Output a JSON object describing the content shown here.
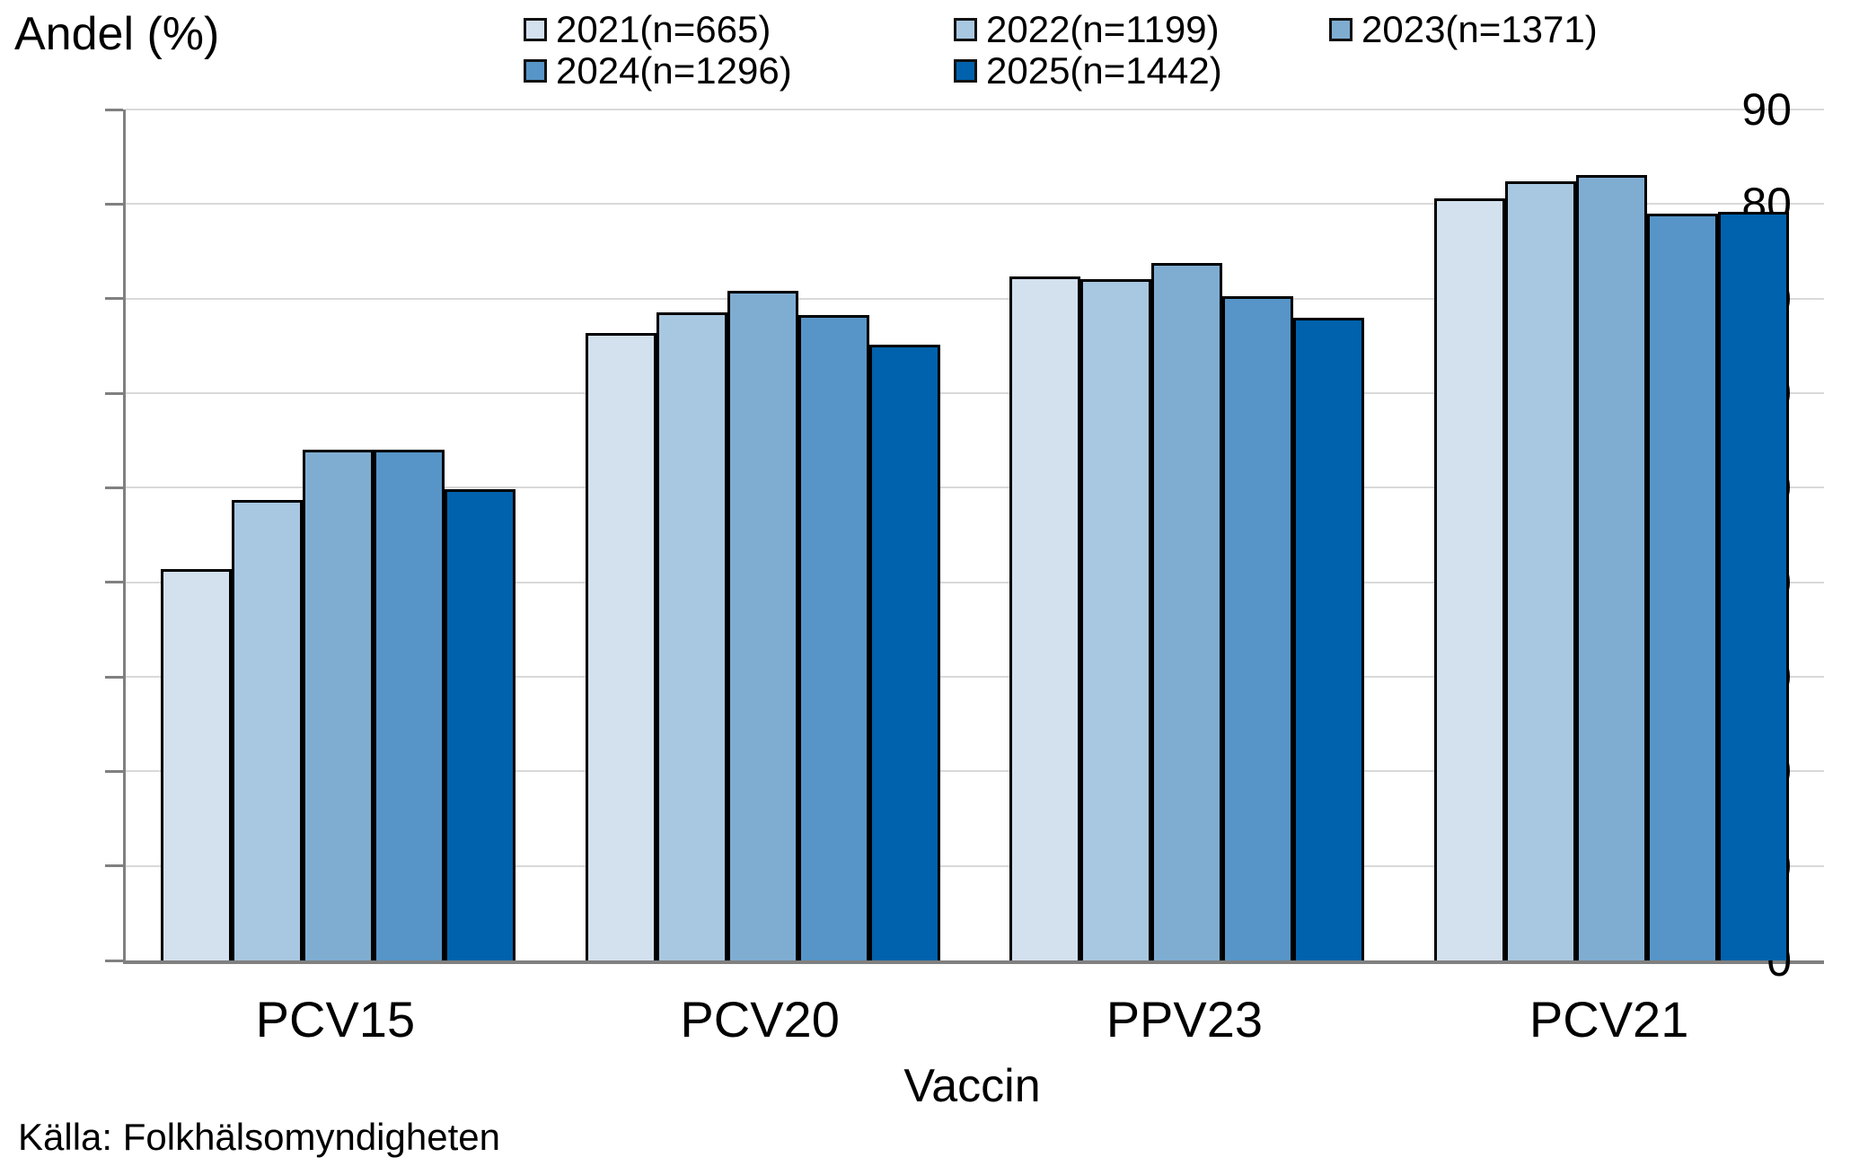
{
  "y_axis_title": "Andel (%)",
  "x_axis_title": "Vaccin",
  "source": "Källa: Folkhälsomyndigheten",
  "legend": {
    "position": "top",
    "items": [
      {
        "label": "2021(n=665)",
        "color": "#D3E0EE"
      },
      {
        "label": "2022(n=1199)",
        "color": "#A8C7E0"
      },
      {
        "label": "2023(n=1371)",
        "color": "#7FADD2"
      },
      {
        "label": "2024(n=1296)",
        "color": "#5795C8"
      },
      {
        "label": "2025(n=1442)",
        "color": "#0062AC"
      }
    ]
  },
  "colors": {
    "bar_border": "#000000",
    "gridline": "#D9D9D9",
    "axis": "#808080",
    "text": "#000000"
  },
  "chart_data": {
    "type": "bar",
    "title": "",
    "xlabel": "Vaccin",
    "ylabel": "Andel (%)",
    "ylim": [
      0,
      90
    ],
    "yticks": [
      0,
      10,
      20,
      30,
      40,
      50,
      60,
      70,
      80,
      90
    ],
    "grid": true,
    "legend_position": "top",
    "categories": [
      "PCV15",
      "PCV20",
      "PPV23",
      "PCV21"
    ],
    "series": [
      {
        "name": "2021(n=665)",
        "color": "#D3E0EE",
        "values": [
          41.4,
          66.4,
          72.3,
          80.6
        ]
      },
      {
        "name": "2022(n=1199)",
        "color": "#A8C7E0",
        "values": [
          48.7,
          68.5,
          72.1,
          82.4
        ]
      },
      {
        "name": "2023(n=1371)",
        "color": "#7FADD2",
        "values": [
          54.0,
          70.8,
          73.8,
          83.1
        ]
      },
      {
        "name": "2024(n=1296)",
        "color": "#5795C8",
        "values": [
          54.0,
          68.3,
          70.3,
          79.0
        ]
      },
      {
        "name": "2025(n=1442)",
        "color": "#0062AC",
        "values": [
          49.8,
          65.1,
          68.0,
          79.2
        ]
      }
    ]
  }
}
